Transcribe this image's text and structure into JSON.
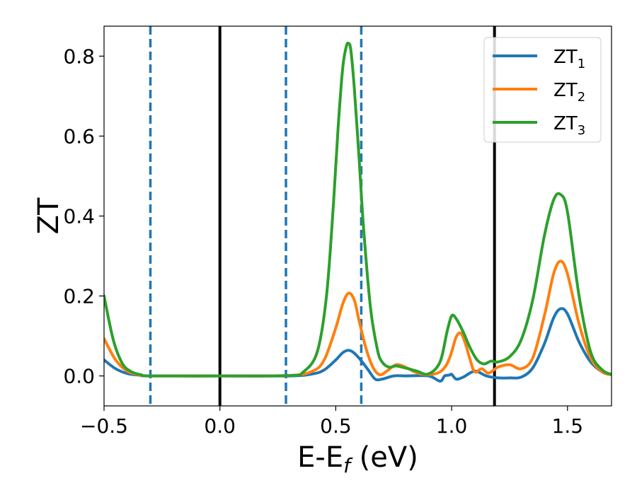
{
  "chart_data": {
    "type": "line",
    "xlabel": {
      "main": "E-E",
      "sub": "f",
      "suffix": " (eV)"
    },
    "ylabel": "ZT",
    "xlim": [
      -0.5,
      1.69
    ],
    "ylim": [
      -0.075,
      0.875
    ],
    "xticks": [
      -0.5,
      0.0,
      0.5,
      1.0,
      1.5
    ],
    "xtick_labels": [
      "−0.5",
      "0.0",
      "0.5",
      "1.0",
      "1.5"
    ],
    "yticks": [
      0.0,
      0.2,
      0.4,
      0.6,
      0.8
    ],
    "ytick_labels": [
      "0.0",
      "0.2",
      "0.4",
      "0.6",
      "0.8"
    ],
    "grid": false,
    "legend_position": "top-right",
    "vlines": [
      {
        "x": -0.3,
        "style": "dashed",
        "color": "#1f77b4"
      },
      {
        "x": 0.0,
        "style": "solid",
        "color": "#000000"
      },
      {
        "x": 0.285,
        "style": "dashed",
        "color": "#1f77b4"
      },
      {
        "x": 0.61,
        "style": "dashed",
        "color": "#1f77b4"
      },
      {
        "x": 1.185,
        "style": "solid",
        "color": "#000000"
      }
    ],
    "series": [
      {
        "name": "ZT",
        "sub": "1",
        "color": "#1f77b4",
        "x": [
          -0.5,
          -0.45,
          -0.4,
          -0.35,
          -0.3,
          0.0,
          0.3,
          0.4,
          0.45,
          0.5,
          0.53,
          0.555,
          0.58,
          0.61,
          0.64,
          0.67,
          0.7,
          0.75,
          0.8,
          0.9,
          0.95,
          0.97,
          0.99,
          1.0,
          1.02,
          1.05,
          1.1,
          1.15,
          1.2,
          1.25,
          1.3,
          1.35,
          1.4,
          1.44,
          1.47,
          1.5,
          1.55,
          1.6,
          1.65,
          1.69
        ],
        "y": [
          0.04,
          0.018,
          0.006,
          0.002,
          0.0,
          0.0,
          0.0,
          0.005,
          0.015,
          0.04,
          0.058,
          0.064,
          0.057,
          0.038,
          0.015,
          -0.008,
          -0.008,
          0.0,
          0.0,
          0.0,
          -0.013,
          0.0,
          0.002,
          0.004,
          -0.008,
          -0.003,
          0.012,
          0.0,
          -0.005,
          -0.005,
          -0.003,
          0.02,
          0.08,
          0.145,
          0.168,
          0.155,
          0.085,
          0.035,
          0.01,
          0.003
        ]
      },
      {
        "name": "ZT",
        "sub": "2",
        "color": "#ff7f0e",
        "x": [
          -0.5,
          -0.45,
          -0.4,
          -0.35,
          -0.3,
          0.0,
          0.3,
          0.4,
          0.45,
          0.5,
          0.53,
          0.555,
          0.58,
          0.6,
          0.63,
          0.66,
          0.69,
          0.72,
          0.76,
          0.8,
          0.85,
          0.9,
          0.95,
          0.98,
          1.0,
          1.02,
          1.04,
          1.06,
          1.08,
          1.1,
          1.13,
          1.16,
          1.2,
          1.25,
          1.3,
          1.35,
          1.4,
          1.44,
          1.47,
          1.5,
          1.55,
          1.6,
          1.65,
          1.69
        ],
        "y": [
          0.093,
          0.04,
          0.012,
          0.003,
          0.0,
          0.0,
          0.001,
          0.012,
          0.04,
          0.12,
          0.18,
          0.207,
          0.19,
          0.14,
          0.07,
          0.022,
          0.003,
          0.012,
          0.028,
          0.022,
          0.008,
          0.003,
          0.01,
          0.03,
          0.06,
          0.098,
          0.107,
          0.08,
          0.04,
          0.01,
          0.018,
          0.007,
          0.022,
          0.028,
          0.018,
          0.045,
          0.15,
          0.255,
          0.287,
          0.255,
          0.13,
          0.045,
          0.01,
          0.003
        ]
      },
      {
        "name": "ZT",
        "sub": "3",
        "color": "#2ca02c",
        "x": [
          -0.5,
          -0.46,
          -0.42,
          -0.38,
          -0.34,
          -0.3,
          0.0,
          0.3,
          0.36,
          0.42,
          0.46,
          0.49,
          0.51,
          0.53,
          0.545,
          0.555,
          0.565,
          0.58,
          0.6,
          0.62,
          0.65,
          0.68,
          0.7,
          0.73,
          0.76,
          0.8,
          0.85,
          0.9,
          0.95,
          0.98,
          1.0,
          1.02,
          1.05,
          1.08,
          1.11,
          1.14,
          1.17,
          1.2,
          1.25,
          1.3,
          1.35,
          1.4,
          1.44,
          1.47,
          1.5,
          1.55,
          1.6,
          1.65,
          1.69
        ],
        "y": [
          0.2,
          0.09,
          0.03,
          0.01,
          0.003,
          0.0,
          0.0,
          0.001,
          0.01,
          0.06,
          0.2,
          0.43,
          0.62,
          0.77,
          0.823,
          0.832,
          0.815,
          0.72,
          0.55,
          0.37,
          0.17,
          0.065,
          0.035,
          0.022,
          0.025,
          0.02,
          0.012,
          0.005,
          0.035,
          0.11,
          0.15,
          0.143,
          0.11,
          0.07,
          0.04,
          0.03,
          0.037,
          0.035,
          0.048,
          0.09,
          0.19,
          0.35,
          0.44,
          0.454,
          0.41,
          0.2,
          0.06,
          0.015,
          0.004
        ]
      }
    ]
  }
}
